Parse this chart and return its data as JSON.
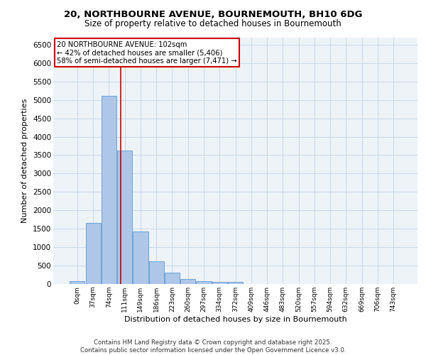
{
  "title_line1": "20, NORTHBOURNE AVENUE, BOURNEMOUTH, BH10 6DG",
  "title_line2": "Size of property relative to detached houses in Bournemouth",
  "xlabel": "Distribution of detached houses by size in Bournemouth",
  "ylabel": "Number of detached properties",
  "annotation_title": "20 NORTHBOURNE AVENUE: 102sqm",
  "annotation_line2": "← 42% of detached houses are smaller (5,406)",
  "annotation_line3": "58% of semi-detached houses are larger (7,471) →",
  "footer_line1": "Contains HM Land Registry data © Crown copyright and database right 2025.",
  "footer_line2": "Contains public sector information licensed under the Open Government Licence v3.0.",
  "bar_labels": [
    "0sqm",
    "37sqm",
    "74sqm",
    "111sqm",
    "149sqm",
    "186sqm",
    "223sqm",
    "260sqm",
    "297sqm",
    "334sqm",
    "372sqm",
    "409sqm",
    "446sqm",
    "483sqm",
    "520sqm",
    "557sqm",
    "594sqm",
    "632sqm",
    "669sqm",
    "706sqm",
    "743sqm"
  ],
  "bar_values": [
    70,
    1650,
    5100,
    3620,
    1420,
    620,
    310,
    140,
    85,
    55,
    50,
    0,
    0,
    0,
    0,
    0,
    0,
    0,
    0,
    0,
    0
  ],
  "bar_color": "#aec6e8",
  "bar_edge_color": "#5b9bd5",
  "grid_color": "#c8d8e8",
  "background_color": "#eef3f8",
  "vline_color": "#cc0000",
  "vline_x": 2.73,
  "ylim": [
    0,
    6700
  ],
  "yticks": [
    0,
    500,
    1000,
    1500,
    2000,
    2500,
    3000,
    3500,
    4000,
    4500,
    5000,
    5500,
    6000,
    6500
  ]
}
